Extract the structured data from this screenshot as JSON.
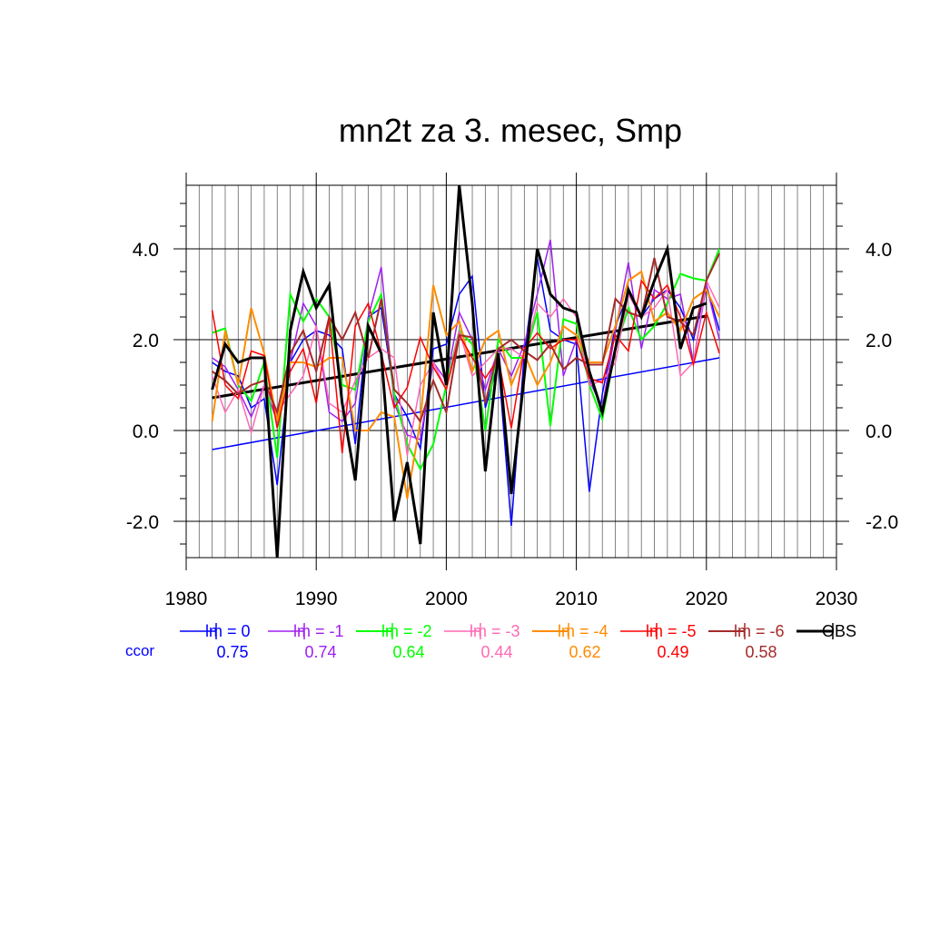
{
  "chart_data": {
    "type": "line",
    "title": "mn2t za 3. mesec, Smp",
    "xlabel": "",
    "ylabel": "",
    "xlim": [
      1980,
      2030
    ],
    "ylim": [
      -2.8,
      5.4
    ],
    "x_ticks": [
      1980,
      1990,
      2000,
      2010,
      2020,
      2030
    ],
    "x_tick_labels": [
      "1980",
      "1990",
      "2000",
      "2010",
      "2020",
      "2030"
    ],
    "y_ticks": [
      -2,
      0,
      2,
      4
    ],
    "y_tick_labels": [
      "-2.0",
      "0.0",
      "2.0",
      "4.0"
    ],
    "grid": "vertical lines every year, horizontal lines at major y ticks",
    "legend_position": "bottom",
    "ccor_label": "ccor",
    "x": [
      1982,
      1983,
      1984,
      1985,
      1986,
      1987,
      1988,
      1989,
      1990,
      1991,
      1992,
      1993,
      1994,
      1995,
      1996,
      1997,
      1998,
      1999,
      2000,
      2001,
      2002,
      2003,
      2004,
      2005,
      2006,
      2007,
      2008,
      2009,
      2010,
      2011,
      2012,
      2013,
      2014,
      2015,
      2016,
      2017,
      2018,
      2019,
      2020,
      2021
    ],
    "series": [
      {
        "name": "lm = 0",
        "color": "#0000ff",
        "width": 1.5,
        "ccor": "0.75",
        "values": [
          1.5,
          1.3,
          1.2,
          0.5,
          0.7,
          -1.2,
          1.5,
          2.0,
          2.2,
          2.1,
          1.8,
          -0.3,
          2.5,
          2.7,
          0.8,
          0.3,
          -0.4,
          1.8,
          1.9,
          3.0,
          3.4,
          0.5,
          1.5,
          -2.1,
          1.7,
          3.8,
          2.2,
          2.0,
          1.9,
          -1.35,
          0.8,
          2.3,
          3.0,
          2.5,
          2.9,
          3.1,
          2.7,
          2.0,
          3.2,
          2.2
        ]
      },
      {
        "name": "lm = -1",
        "color": "#a020f0",
        "width": 1.5,
        "ccor": "0.74",
        "values": [
          1.6,
          1.4,
          0.9,
          0.3,
          1.0,
          0.2,
          1.5,
          2.8,
          2.3,
          0.4,
          0.2,
          0.6,
          2.5,
          3.6,
          0.6,
          -0.1,
          -0.2,
          1.5,
          1.1,
          2.6,
          2.0,
          0.9,
          1.8,
          1.2,
          1.9,
          3.0,
          4.2,
          1.2,
          2.0,
          1.1,
          0.5,
          2.2,
          3.7,
          1.8,
          3.1,
          2.9,
          3.0,
          1.5,
          3.2,
          2.0
        ]
      },
      {
        "name": "lm = -2",
        "color": "#00ff00",
        "width": 2.0,
        "ccor": "0.64",
        "values": [
          2.15,
          2.25,
          1.0,
          0.65,
          1.5,
          -0.6,
          3.0,
          2.4,
          2.9,
          2.5,
          1.0,
          0.9,
          2.4,
          3.0,
          0.8,
          -0.3,
          -0.85,
          -0.3,
          1.0,
          2.2,
          1.9,
          0.0,
          2.0,
          1.6,
          1.6,
          2.6,
          0.1,
          2.45,
          2.35,
          1.0,
          0.25,
          1.8,
          2.7,
          2.0,
          2.3,
          2.8,
          3.45,
          3.35,
          3.3,
          4.0
        ]
      },
      {
        "name": "lm = -3",
        "color": "#ff69b4",
        "width": 1.5,
        "ccor": "0.44",
        "values": [
          1.2,
          0.4,
          0.9,
          -0.05,
          1.0,
          0.4,
          0.8,
          1.2,
          2.3,
          0.6,
          0.4,
          1.1,
          1.6,
          1.8,
          1.6,
          -0.55,
          1.0,
          1.5,
          0.9,
          2.2,
          1.2,
          1.5,
          1.8,
          1.8,
          1.6,
          2.8,
          2.5,
          2.9,
          2.5,
          1.0,
          1.1,
          1.5,
          3.0,
          2.5,
          2.7,
          3.1,
          1.2,
          1.5,
          3.3,
          2.7
        ]
      },
      {
        "name": "lm = -4",
        "color": "#ff8c00",
        "width": 2.0,
        "ccor": "0.62",
        "values": [
          0.2,
          2.2,
          1.0,
          2.7,
          1.7,
          0.2,
          1.5,
          1.5,
          1.4,
          1.6,
          1.6,
          0.0,
          0.0,
          0.4,
          0.3,
          -1.5,
          0.2,
          3.2,
          2.1,
          2.4,
          1.3,
          2.0,
          2.2,
          1.0,
          1.7,
          1.0,
          1.5,
          2.3,
          2.1,
          1.5,
          1.5,
          2.3,
          3.3,
          3.5,
          2.4,
          2.6,
          2.2,
          2.9,
          3.1,
          2.5
        ]
      },
      {
        "name": "lm = -5",
        "color": "#ff0000",
        "width": 1.5,
        "ccor": "0.49",
        "values": [
          2.65,
          1.0,
          0.7,
          1.75,
          1.65,
          0.05,
          1.3,
          1.8,
          0.6,
          2.5,
          -0.5,
          2.3,
          2.8,
          1.7,
          0.5,
          0.95,
          2.05,
          1.4,
          0.9,
          2.1,
          1.6,
          1.15,
          1.6,
          0.05,
          1.8,
          2.15,
          1.8,
          2.0,
          2.0,
          1.15,
          1.05,
          2.1,
          1.75,
          3.3,
          2.9,
          3.2,
          2.5,
          1.45,
          2.6,
          1.7
        ]
      },
      {
        "name": "lm = -6",
        "color": "#a52a2a",
        "width": 2.0,
        "ccor": "0.58",
        "values": [
          1.3,
          1.1,
          0.8,
          1.0,
          1.1,
          0.4,
          1.7,
          2.2,
          1.3,
          2.5,
          2.0,
          2.6,
          1.6,
          2.9,
          0.9,
          0.6,
          0.2,
          1.1,
          0.4,
          2.1,
          2.05,
          0.6,
          1.8,
          2.0,
          1.75,
          1.55,
          1.9,
          1.35,
          1.6,
          1.45,
          1.45,
          2.9,
          2.6,
          2.5,
          3.8,
          2.5,
          2.4,
          2.1,
          3.3,
          3.9
        ]
      },
      {
        "name": "OBS",
        "color": "#000000",
        "width": 3.0,
        "ccor": "",
        "values": [
          0.9,
          1.9,
          1.5,
          1.6,
          1.6,
          -2.8,
          2.2,
          3.5,
          2.7,
          3.2,
          0.6,
          -1.1,
          2.3,
          1.7,
          -2.0,
          -0.7,
          -2.5,
          2.6,
          1.0,
          5.4,
          2.8,
          -0.9,
          1.7,
          -1.4,
          1.2,
          4.0,
          3.0,
          2.7,
          2.6,
          1.3,
          0.4,
          1.8,
          3.1,
          2.5,
          3.3,
          4.0,
          1.8,
          2.7,
          2.8,
          null
        ]
      }
    ],
    "trend_lines": [
      {
        "color": "#0000ff",
        "width": 1.5,
        "x": [
          1982,
          2021
        ],
        "y": [
          -0.42,
          1.6
        ]
      },
      {
        "color": "#000000",
        "width": 3.0,
        "x": [
          1982,
          2020
        ],
        "y": [
          0.72,
          2.52
        ]
      }
    ]
  }
}
